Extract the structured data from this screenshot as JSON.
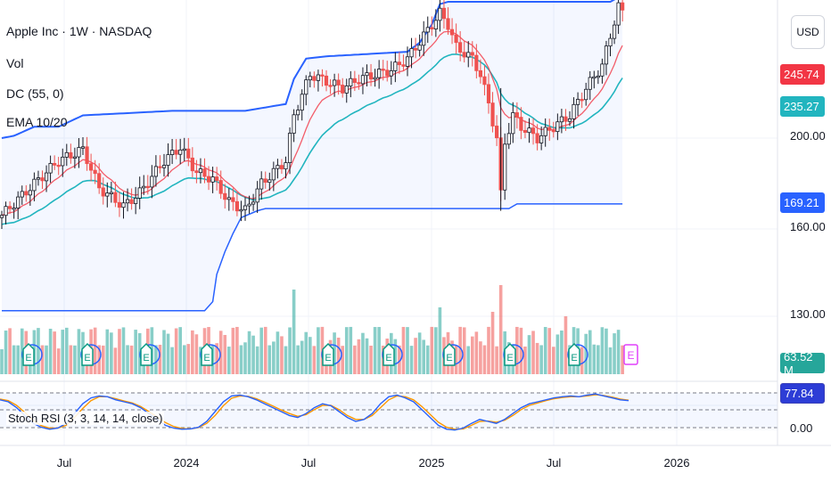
{
  "legend": {
    "title": "Apple Inc · 1W · NASDAQ",
    "vol": "Vol",
    "dc": "DC (55, 0)",
    "ema": "EMA 10/20",
    "stoch": "Stoch RSI (3, 3, 14, 14, close)"
  },
  "currency": "USD",
  "price_tags": {
    "ema_fast": "245.74",
    "ema_slow": "235.27",
    "dc_low": "169.21",
    "volume": "63.52 M",
    "stoch": "77.84"
  },
  "colors": {
    "up": "#26a69a",
    "down": "#ef5350",
    "ema_fast": "#f23645",
    "ema_slow": "#22b5bf",
    "donchian": "#2962ff",
    "stoch_k": "#2962ff",
    "stoch_d": "#ff9800",
    "earnings": "#089981"
  },
  "chart_data": [
    {
      "type": "candlestick",
      "title": "Apple Inc · 1W · NASDAQ",
      "y_axis_ticks": [
        "200.00",
        "160.00",
        "130.00"
      ],
      "y_axis_tick_values": [
        200,
        160,
        130
      ],
      "x_axis_ticks": [
        "Jul",
        "2024",
        "Jul",
        "2025",
        "Jul",
        "2026"
      ],
      "price_range_approx": [
        116,
        262
      ],
      "series": [
        {
          "name": "DC (55, 0)",
          "description": "Donchian channel upper/lower bands"
        },
        {
          "name": "EMA 10/20",
          "values_last": [
            245.74,
            235.27
          ]
        },
        {
          "name": "Vol",
          "value_last": "63.52 M"
        }
      ],
      "donchian_upper_steps": [
        {
          "x": "2023-04",
          "value": 184
        },
        {
          "x": "2023-06",
          "value": 195
        },
        {
          "x": "2023-12",
          "value": 199
        },
        {
          "x": "2024-06",
          "value": 237
        },
        {
          "x": "2024-12",
          "value": 260
        },
        {
          "x": "2025-10",
          "value": 262
        }
      ],
      "donchian_lower_steps": [
        {
          "x": "2023-04",
          "value": 124
        },
        {
          "x": "2023-10",
          "value": 124
        },
        {
          "x": "2024-06",
          "value": 165
        },
        {
          "x": "2025-04",
          "value": 169
        }
      ],
      "last_close_approx": 255
    },
    {
      "type": "line",
      "title": "Stoch RSI (3, 3, 14, 14, close)",
      "y_axis_ticks": [
        "0.00"
      ],
      "value_last": 77.84,
      "series": [
        {
          "name": "K",
          "values": [
            80,
            75,
            60,
            40,
            20,
            10,
            5,
            8,
            20,
            45,
            70,
            85,
            90,
            88,
            80,
            75,
            70,
            60,
            45,
            30,
            15,
            8,
            5,
            6,
            10,
            25,
            50,
            75,
            90,
            92,
            88,
            80,
            70,
            60,
            50,
            40,
            35,
            45,
            60,
            70,
            65,
            50,
            35,
            25,
            30,
            45,
            70,
            88,
            92,
            85,
            75,
            55,
            35,
            15,
            5,
            3,
            8,
            20,
            30,
            25,
            20,
            30,
            45,
            60,
            70,
            75,
            80,
            85,
            88,
            90,
            88,
            92,
            95,
            90,
            85,
            80,
            78
          ]
        },
        {
          "name": "D",
          "values": [
            82,
            78,
            66,
            48,
            28,
            14,
            8,
            8,
            15,
            35,
            58,
            78,
            88,
            88,
            83,
            77,
            72,
            63,
            50,
            36,
            22,
            12,
            7,
            6,
            9,
            20,
            40,
            65,
            84,
            90,
            89,
            83,
            74,
            64,
            54,
            45,
            38,
            42,
            55,
            66,
            66,
            55,
            40,
            30,
            30,
            40,
            60,
            80,
            90,
            88,
            80,
            63,
            43,
            23,
            10,
            5,
            6,
            15,
            25,
            26,
            23,
            28,
            40,
            55,
            66,
            72,
            78,
            83,
            86,
            88,
            88,
            90,
            93,
            91,
            87,
            82,
            79
          ]
        }
      ]
    }
  ]
}
